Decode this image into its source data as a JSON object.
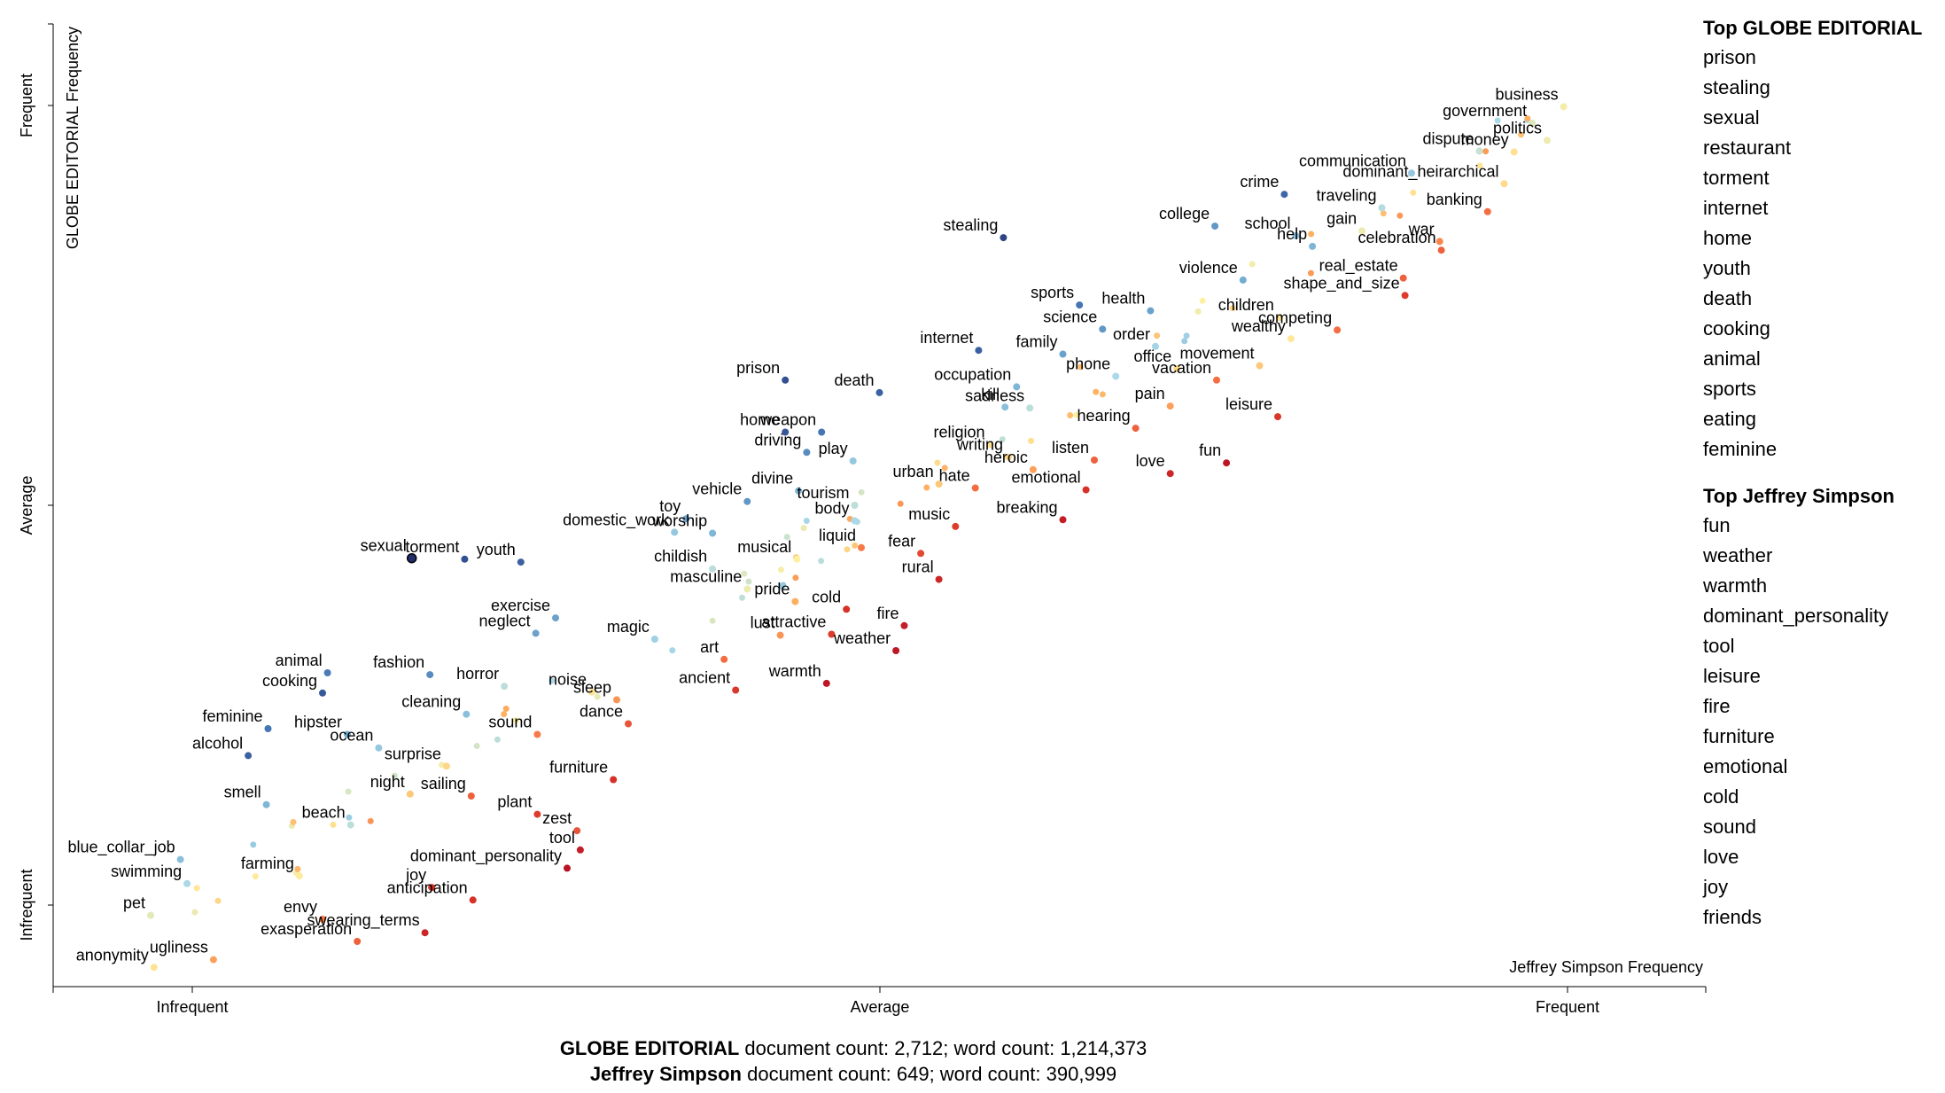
{
  "chart_data": {
    "type": "scatter",
    "title": "",
    "xlabel": "Jeffrey Simpson Frequency",
    "ylabel": "GLOBE EDITORIAL Frequency",
    "x_ticks": [
      "Infrequent",
      "Average",
      "Frequent"
    ],
    "y_ticks": [
      "Infrequent",
      "Average",
      "Frequent"
    ],
    "xlim": [
      0,
      1
    ],
    "ylim": [
      0,
      1
    ],
    "grid": false,
    "color_scale": "red (Jeffrey Simpson) - yellow (neutral) - blue (GLOBE EDITORIAL)",
    "points": [
      {
        "label": "business",
        "x": 0.914,
        "y": 0.914,
        "score": 0.03
      },
      {
        "label": "government",
        "x": 0.895,
        "y": 0.897,
        "score": 0.1
      },
      {
        "label": "politics",
        "x": 0.904,
        "y": 0.879,
        "score": 0.05
      },
      {
        "label": "money",
        "x": 0.884,
        "y": 0.867,
        "score": -0.06
      },
      {
        "label": "dispute",
        "x": 0.863,
        "y": 0.868,
        "score": 0.16
      },
      {
        "label": "communication",
        "x": 0.822,
        "y": 0.845,
        "score": 0.35
      },
      {
        "label": "dominant_heirarchical",
        "x": 0.878,
        "y": 0.834,
        "score": -0.08
      },
      {
        "label": "crime",
        "x": 0.745,
        "y": 0.823,
        "score": 0.8
      },
      {
        "label": "traveling",
        "x": 0.804,
        "y": 0.809,
        "score": 0.22
      },
      {
        "label": "banking",
        "x": 0.868,
        "y": 0.805,
        "score": -0.5
      },
      {
        "label": "college",
        "x": 0.703,
        "y": 0.79,
        "score": 0.6
      },
      {
        "label": "school",
        "x": 0.752,
        "y": 0.78,
        "score": 0.4
      },
      {
        "label": "gain",
        "x": 0.792,
        "y": 0.785,
        "score": 0.05
      },
      {
        "label": "help",
        "x": 0.762,
        "y": 0.769,
        "score": 0.45
      },
      {
        "label": "stealing",
        "x": 0.575,
        "y": 0.778,
        "score": 0.92
      },
      {
        "label": "war",
        "x": 0.839,
        "y": 0.774,
        "score": -0.4
      },
      {
        "label": "celebration",
        "x": 0.84,
        "y": 0.765,
        "score": -0.55
      },
      {
        "label": "violence",
        "x": 0.72,
        "y": 0.734,
        "score": 0.5
      },
      {
        "label": "real_estate",
        "x": 0.817,
        "y": 0.736,
        "score": -0.55
      },
      {
        "label": "sports",
        "x": 0.621,
        "y": 0.708,
        "score": 0.75
      },
      {
        "label": "health",
        "x": 0.664,
        "y": 0.702,
        "score": 0.55
      },
      {
        "label": "shape_and_size",
        "x": 0.818,
        "y": 0.718,
        "score": -0.7
      },
      {
        "label": "children",
        "x": 0.742,
        "y": 0.695,
        "score": -0.05
      },
      {
        "label": "science",
        "x": 0.635,
        "y": 0.683,
        "score": 0.6
      },
      {
        "label": "wealthy",
        "x": 0.749,
        "y": 0.673,
        "score": -0.03
      },
      {
        "label": "order",
        "x": 0.667,
        "y": 0.665,
        "score": 0.28
      },
      {
        "label": "competing",
        "x": 0.777,
        "y": 0.682,
        "score": -0.5
      },
      {
        "label": "family",
        "x": 0.611,
        "y": 0.657,
        "score": 0.55
      },
      {
        "label": "internet",
        "x": 0.56,
        "y": 0.661,
        "score": 0.82
      },
      {
        "label": "movement",
        "x": 0.73,
        "y": 0.645,
        "score": -0.15
      },
      {
        "label": "office",
        "x": 0.68,
        "y": 0.642,
        "score": -0.1
      },
      {
        "label": "phone",
        "x": 0.643,
        "y": 0.634,
        "score": 0.25
      },
      {
        "label": "vacation",
        "x": 0.704,
        "y": 0.63,
        "score": -0.5
      },
      {
        "label": "prison",
        "x": 0.443,
        "y": 0.63,
        "score": 0.88
      },
      {
        "label": "death",
        "x": 0.5,
        "y": 0.617,
        "score": 0.82
      },
      {
        "label": "occupation",
        "x": 0.583,
        "y": 0.623,
        "score": 0.45
      },
      {
        "label": "pain",
        "x": 0.676,
        "y": 0.603,
        "score": -0.3
      },
      {
        "label": "leisure",
        "x": 0.741,
        "y": 0.592,
        "score": -0.72
      },
      {
        "label": "kill",
        "x": 0.576,
        "y": 0.602,
        "score": 0.4
      },
      {
        "label": "sadness",
        "x": 0.591,
        "y": 0.601,
        "score": 0.2
      },
      {
        "label": "hearing",
        "x": 0.655,
        "y": 0.58,
        "score": -0.55
      },
      {
        "label": "home",
        "x": 0.443,
        "y": 0.576,
        "score": 0.85
      },
      {
        "label": "weapon",
        "x": 0.465,
        "y": 0.576,
        "score": 0.75
      },
      {
        "label": "religion",
        "x": 0.567,
        "y": 0.563,
        "score": -0.05
      },
      {
        "label": "writing",
        "x": 0.578,
        "y": 0.55,
        "score": -0.1
      },
      {
        "label": "listen",
        "x": 0.63,
        "y": 0.547,
        "score": -0.55
      },
      {
        "label": "fun",
        "x": 0.71,
        "y": 0.544,
        "score": -0.88
      },
      {
        "label": "love",
        "x": 0.676,
        "y": 0.533,
        "score": -0.8
      },
      {
        "label": "driving",
        "x": 0.456,
        "y": 0.555,
        "score": 0.65
      },
      {
        "label": "play",
        "x": 0.484,
        "y": 0.546,
        "score": 0.35
      },
      {
        "label": "heroic",
        "x": 0.593,
        "y": 0.537,
        "score": -0.3
      },
      {
        "label": "urban",
        "x": 0.536,
        "y": 0.522,
        "score": -0.15
      },
      {
        "label": "hate",
        "x": 0.558,
        "y": 0.518,
        "score": -0.5
      },
      {
        "label": "emotional",
        "x": 0.625,
        "y": 0.516,
        "score": -0.75
      },
      {
        "label": "divine",
        "x": 0.451,
        "y": 0.515,
        "score": 0.45
      },
      {
        "label": "vehicle",
        "x": 0.42,
        "y": 0.504,
        "score": 0.6
      },
      {
        "label": "tourism",
        "x": 0.485,
        "y": 0.5,
        "score": 0.2
      },
      {
        "label": "breaking",
        "x": 0.611,
        "y": 0.485,
        "score": -0.85
      },
      {
        "label": "body",
        "x": 0.485,
        "y": 0.484,
        "score": 0.25
      },
      {
        "label": "music",
        "x": 0.546,
        "y": 0.478,
        "score": -0.7
      },
      {
        "label": "toy",
        "x": 0.383,
        "y": 0.486,
        "score": 0.55
      },
      {
        "label": "worship",
        "x": 0.399,
        "y": 0.471,
        "score": 0.45
      },
      {
        "label": "domestic_work",
        "x": 0.376,
        "y": 0.472,
        "score": 0.35
      },
      {
        "label": "liquid",
        "x": 0.489,
        "y": 0.456,
        "score": -0.45
      },
      {
        "label": "musical",
        "x": 0.45,
        "y": 0.444,
        "score": 0.0
      },
      {
        "label": "fear",
        "x": 0.525,
        "y": 0.45,
        "score": -0.65
      },
      {
        "label": "torment",
        "x": 0.249,
        "y": 0.444,
        "score": 0.88
      },
      {
        "label": "youth",
        "x": 0.283,
        "y": 0.441,
        "score": 0.82
      },
      {
        "label": "childish",
        "x": 0.399,
        "y": 0.434,
        "score": 0.2
      },
      {
        "label": "rural",
        "x": 0.536,
        "y": 0.423,
        "score": -0.8
      },
      {
        "label": "sexual",
        "x": 0.217,
        "y": 0.445,
        "score": 1.0
      },
      {
        "label": "masculine",
        "x": 0.42,
        "y": 0.413,
        "score": 0.05
      },
      {
        "label": "pride",
        "x": 0.449,
        "y": 0.4,
        "score": -0.25
      },
      {
        "label": "cold",
        "x": 0.48,
        "y": 0.392,
        "score": -0.75
      },
      {
        "label": "fire",
        "x": 0.515,
        "y": 0.375,
        "score": -0.85
      },
      {
        "label": "exercise",
        "x": 0.304,
        "y": 0.383,
        "score": 0.55
      },
      {
        "label": "lust",
        "x": 0.44,
        "y": 0.365,
        "score": -0.35
      },
      {
        "label": "attractive",
        "x": 0.471,
        "y": 0.366,
        "score": -0.7
      },
      {
        "label": "neglect",
        "x": 0.292,
        "y": 0.367,
        "score": 0.55
      },
      {
        "label": "magic",
        "x": 0.364,
        "y": 0.361,
        "score": 0.3
      },
      {
        "label": "art",
        "x": 0.406,
        "y": 0.34,
        "score": -0.5
      },
      {
        "label": "weather",
        "x": 0.51,
        "y": 0.349,
        "score": -0.88
      },
      {
        "label": "animal",
        "x": 0.166,
        "y": 0.326,
        "score": 0.72
      },
      {
        "label": "fashion",
        "x": 0.228,
        "y": 0.324,
        "score": 0.65
      },
      {
        "label": "cooking",
        "x": 0.163,
        "y": 0.305,
        "score": 0.85
      },
      {
        "label": "horror",
        "x": 0.273,
        "y": 0.312,
        "score": 0.2
      },
      {
        "label": "noise",
        "x": 0.326,
        "y": 0.306,
        "score": -0.05
      },
      {
        "label": "sleep",
        "x": 0.341,
        "y": 0.298,
        "score": -0.35
      },
      {
        "label": "ancient",
        "x": 0.413,
        "y": 0.308,
        "score": -0.72
      },
      {
        "label": "warmth",
        "x": 0.468,
        "y": 0.315,
        "score": -0.88
      },
      {
        "label": "cleaning",
        "x": 0.25,
        "y": 0.283,
        "score": 0.4
      },
      {
        "label": "dance",
        "x": 0.348,
        "y": 0.273,
        "score": -0.6
      },
      {
        "label": "feminine",
        "x": 0.13,
        "y": 0.268,
        "score": 0.75
      },
      {
        "label": "hipster",
        "x": 0.178,
        "y": 0.262,
        "score": 0.5
      },
      {
        "label": "ocean",
        "x": 0.197,
        "y": 0.248,
        "score": 0.35
      },
      {
        "label": "sound",
        "x": 0.293,
        "y": 0.262,
        "score": -0.45
      },
      {
        "label": "alcohol",
        "x": 0.118,
        "y": 0.24,
        "score": 0.82
      },
      {
        "label": "surprise",
        "x": 0.238,
        "y": 0.229,
        "score": -0.1
      },
      {
        "label": "furniture",
        "x": 0.339,
        "y": 0.215,
        "score": -0.75
      },
      {
        "label": "sailing",
        "x": 0.253,
        "y": 0.198,
        "score": -0.55
      },
      {
        "label": "night",
        "x": 0.216,
        "y": 0.2,
        "score": -0.15
      },
      {
        "label": "smell",
        "x": 0.129,
        "y": 0.189,
        "score": 0.45
      },
      {
        "label": "beach",
        "x": 0.18,
        "y": 0.168,
        "score": 0.2
      },
      {
        "label": "plant",
        "x": 0.293,
        "y": 0.179,
        "score": -0.7
      },
      {
        "label": "zest",
        "x": 0.317,
        "y": 0.162,
        "score": -0.6
      },
      {
        "label": "tool",
        "x": 0.319,
        "y": 0.142,
        "score": -0.85
      },
      {
        "label": "blue_collar_job",
        "x": 0.077,
        "y": 0.132,
        "score": 0.4
      },
      {
        "label": "dominant_personality",
        "x": 0.311,
        "y": 0.123,
        "score": -0.9
      },
      {
        "label": "farming",
        "x": 0.149,
        "y": 0.115,
        "score": -0.02
      },
      {
        "label": "swimming",
        "x": 0.081,
        "y": 0.107,
        "score": 0.25
      },
      {
        "label": "joy",
        "x": 0.229,
        "y": 0.103,
        "score": -0.75
      },
      {
        "label": "anticipation",
        "x": 0.254,
        "y": 0.09,
        "score": -0.75
      },
      {
        "label": "pet",
        "x": 0.059,
        "y": 0.074,
        "score": 0.08
      },
      {
        "label": "envy",
        "x": 0.163,
        "y": 0.07,
        "score": -0.45
      },
      {
        "label": "swearing_terms",
        "x": 0.225,
        "y": 0.056,
        "score": -0.8
      },
      {
        "label": "exasperation",
        "x": 0.184,
        "y": 0.047,
        "score": -0.55
      },
      {
        "label": "ugliness",
        "x": 0.097,
        "y": 0.028,
        "score": -0.3
      },
      {
        "label": "anonymity",
        "x": 0.061,
        "y": 0.02,
        "score": -0.05
      }
    ]
  },
  "sidebar": {
    "top_a_title": "Top GLOBE EDITORIAL",
    "top_a": [
      "prison",
      "stealing",
      "sexual",
      "restaurant",
      "torment",
      "internet",
      "home",
      "youth",
      "death",
      "cooking",
      "animal",
      "sports",
      "eating",
      "feminine"
    ],
    "top_b_title": "Top Jeffrey Simpson",
    "top_b": [
      "fun",
      "weather",
      "warmth",
      "dominant_personality",
      "tool",
      "leisure",
      "fire",
      "furniture",
      "emotional",
      "cold",
      "sound",
      "love",
      "joy",
      "friends"
    ]
  },
  "footer": {
    "line1_name": "GLOBE EDITORIAL",
    "line1_stats": " document count: 2,712; word count: 1,214,373",
    "line2_name": "Jeffrey Simpson",
    "line2_stats": " document count: 649; word count: 390,999"
  }
}
